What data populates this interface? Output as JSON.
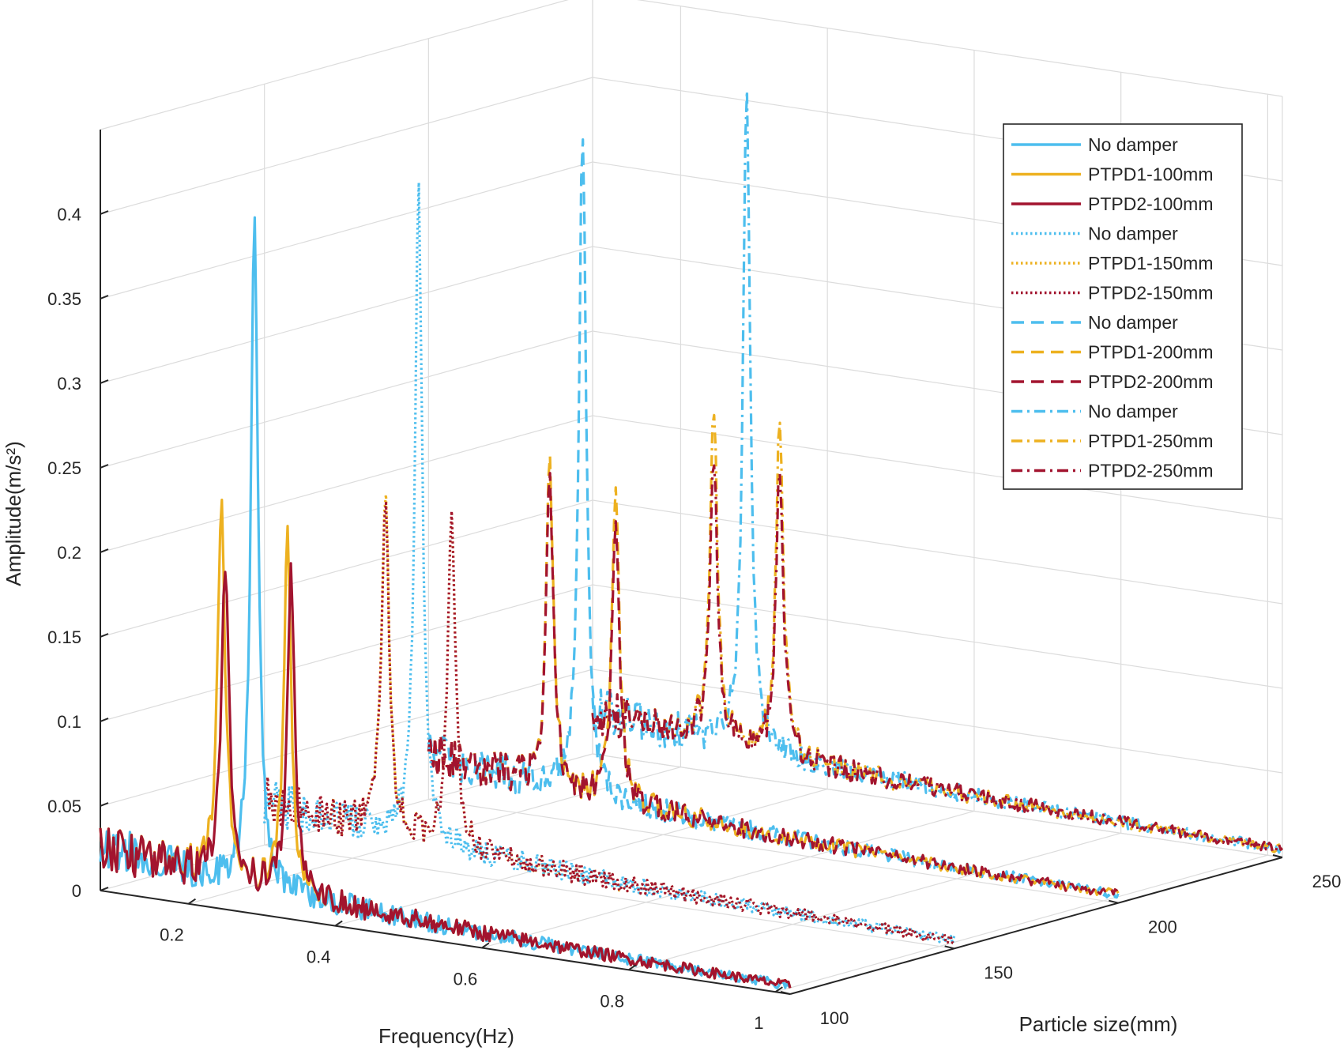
{
  "chart_data": {
    "type": "line-3d-waterfall",
    "title": "",
    "xlabel": "Frequency(Hz)",
    "ylabel": "Particle size(mm)",
    "zlabel": "Amplitude(m/s²)",
    "xlim": [
      0.08,
      1.02
    ],
    "ylim": [
      100,
      250
    ],
    "zlim": [
      0,
      0.45
    ],
    "x_ticks": [
      "0.2",
      "0.4",
      "0.6",
      "0.8",
      "1"
    ],
    "y_ticks": [
      "100",
      "150",
      "200",
      "250"
    ],
    "z_ticks": [
      "0",
      "0.05",
      "0.1",
      "0.15",
      "0.2",
      "0.25",
      "0.3",
      "0.35",
      "0.4"
    ],
    "grid": true,
    "legend_position": "top-right",
    "colors": {
      "no_damper": "#4DBEEE",
      "ptpd1": "#EDB120",
      "ptpd2": "#A2142F",
      "axis": "#262626",
      "grid": "#dcdcdc"
    },
    "series": [
      {
        "name": "No damper",
        "particle_size": 100,
        "style": "solid",
        "color_key": "no_damper",
        "peaks": [
          {
            "f": 0.29,
            "a": 0.39
          }
        ]
      },
      {
        "name": "PTPD1-100mm",
        "particle_size": 100,
        "style": "solid",
        "color_key": "ptpd1",
        "peaks": [
          {
            "f": 0.245,
            "a": 0.225
          },
          {
            "f": 0.335,
            "a": 0.21
          }
        ]
      },
      {
        "name": "PTPD2-100mm",
        "particle_size": 100,
        "style": "solid",
        "color_key": "ptpd2",
        "peaks": [
          {
            "f": 0.25,
            "a": 0.19
          },
          {
            "f": 0.34,
            "a": 0.19
          }
        ]
      },
      {
        "name": "No damper",
        "particle_size": 150,
        "style": "dotted",
        "color_key": "no_damper",
        "peaks": [
          {
            "f": 0.29,
            "a": 0.39
          }
        ]
      },
      {
        "name": "PTPD1-150mm",
        "particle_size": 150,
        "style": "dotted",
        "color_key": "ptpd1",
        "peaks": [
          {
            "f": 0.245,
            "a": 0.21
          },
          {
            "f": 0.335,
            "a": 0.205
          }
        ]
      },
      {
        "name": "PTPD2-150mm",
        "particle_size": 150,
        "style": "dotted",
        "color_key": "ptpd2",
        "peaks": [
          {
            "f": 0.245,
            "a": 0.205
          },
          {
            "f": 0.335,
            "a": 0.205
          }
        ]
      },
      {
        "name": "No damper",
        "particle_size": 200,
        "style": "dashed",
        "color_key": "no_damper",
        "peaks": [
          {
            "f": 0.29,
            "a": 0.39
          }
        ]
      },
      {
        "name": "PTPD1-200mm",
        "particle_size": 200,
        "style": "dashed",
        "color_key": "ptpd1",
        "peaks": [
          {
            "f": 0.245,
            "a": 0.19
          },
          {
            "f": 0.335,
            "a": 0.19
          }
        ]
      },
      {
        "name": "PTPD2-200mm",
        "particle_size": 200,
        "style": "dashed",
        "color_key": "ptpd2",
        "peaks": [
          {
            "f": 0.245,
            "a": 0.18
          },
          {
            "f": 0.335,
            "a": 0.17
          }
        ]
      },
      {
        "name": "No damper",
        "particle_size": 250,
        "style": "dashdot",
        "color_key": "no_damper",
        "peaks": [
          {
            "f": 0.29,
            "a": 0.39
          }
        ]
      },
      {
        "name": "PTPD1-250mm",
        "particle_size": 250,
        "style": "dashdot",
        "color_key": "ptpd1",
        "peaks": [
          {
            "f": 0.245,
            "a": 0.2
          },
          {
            "f": 0.335,
            "a": 0.2
          }
        ]
      },
      {
        "name": "PTPD2-250mm",
        "particle_size": 250,
        "style": "dashdot",
        "color_key": "ptpd2",
        "peaks": [
          {
            "f": 0.245,
            "a": 0.17
          },
          {
            "f": 0.335,
            "a": 0.17
          }
        ]
      }
    ]
  }
}
